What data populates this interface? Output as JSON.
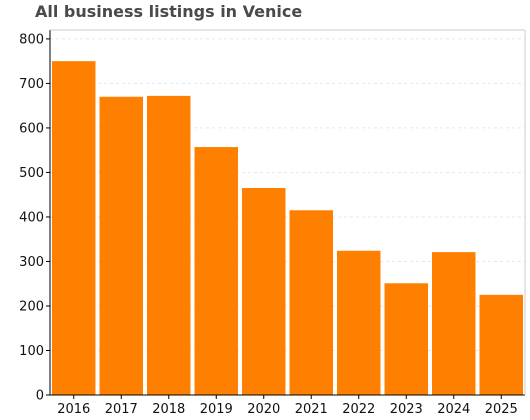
{
  "chart_data": {
    "type": "bar",
    "title": "All business listings in Venice",
    "categories": [
      "2016",
      "2017",
      "2018",
      "2019",
      "2020",
      "2021",
      "2022",
      "2023",
      "2024",
      "2025"
    ],
    "values": [
      750,
      670,
      672,
      557,
      465,
      415,
      324,
      251,
      321,
      225
    ],
    "xlabel": "",
    "ylabel": "",
    "ylim": [
      0,
      820
    ],
    "yticks": [
      0,
      100,
      200,
      300,
      400,
      500,
      600,
      700,
      800
    ],
    "grid": true,
    "bar_color": "#ff8000",
    "grid_color": "#e6e6e6"
  }
}
